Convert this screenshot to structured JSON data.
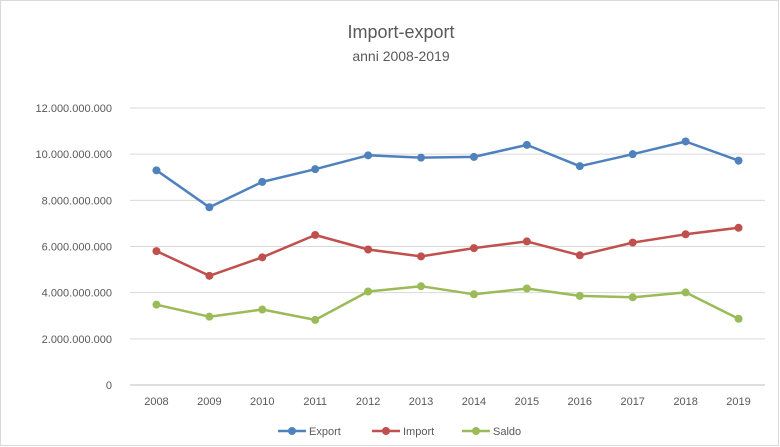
{
  "chart_data": {
    "type": "line",
    "title": "Import-export",
    "subtitle": "anni 2008-2019",
    "xlabel": "",
    "ylabel": "",
    "ylim": [
      0,
      12000000000
    ],
    "yticks": [
      "0",
      "2.000.000.000",
      "4.000.000.000",
      "6.000.000.000",
      "8.000.000.000",
      "10.000.000.000",
      "12.000.000.000"
    ],
    "categories": [
      "2008",
      "2009",
      "2010",
      "2011",
      "2012",
      "2013",
      "2014",
      "2015",
      "2016",
      "2017",
      "2018",
      "2019"
    ],
    "grid": true,
    "legend": "bottom",
    "series": [
      {
        "name": "Export",
        "color": "#4f81bd",
        "values": [
          9300000000,
          7700000000,
          8800000000,
          9350000000,
          9950000000,
          9850000000,
          9880000000,
          10400000000,
          9480000000,
          10000000000,
          10550000000,
          9720000000
        ]
      },
      {
        "name": "Import",
        "color": "#c0504d",
        "values": [
          5800000000,
          4730000000,
          5530000000,
          6500000000,
          5870000000,
          5570000000,
          5930000000,
          6220000000,
          5620000000,
          6170000000,
          6530000000,
          6810000000
        ]
      },
      {
        "name": "Saldo",
        "color": "#9bbb59",
        "values": [
          3480000000,
          2960000000,
          3270000000,
          2820000000,
          4050000000,
          4280000000,
          3930000000,
          4180000000,
          3860000000,
          3800000000,
          4010000000,
          2870000000
        ]
      }
    ]
  }
}
